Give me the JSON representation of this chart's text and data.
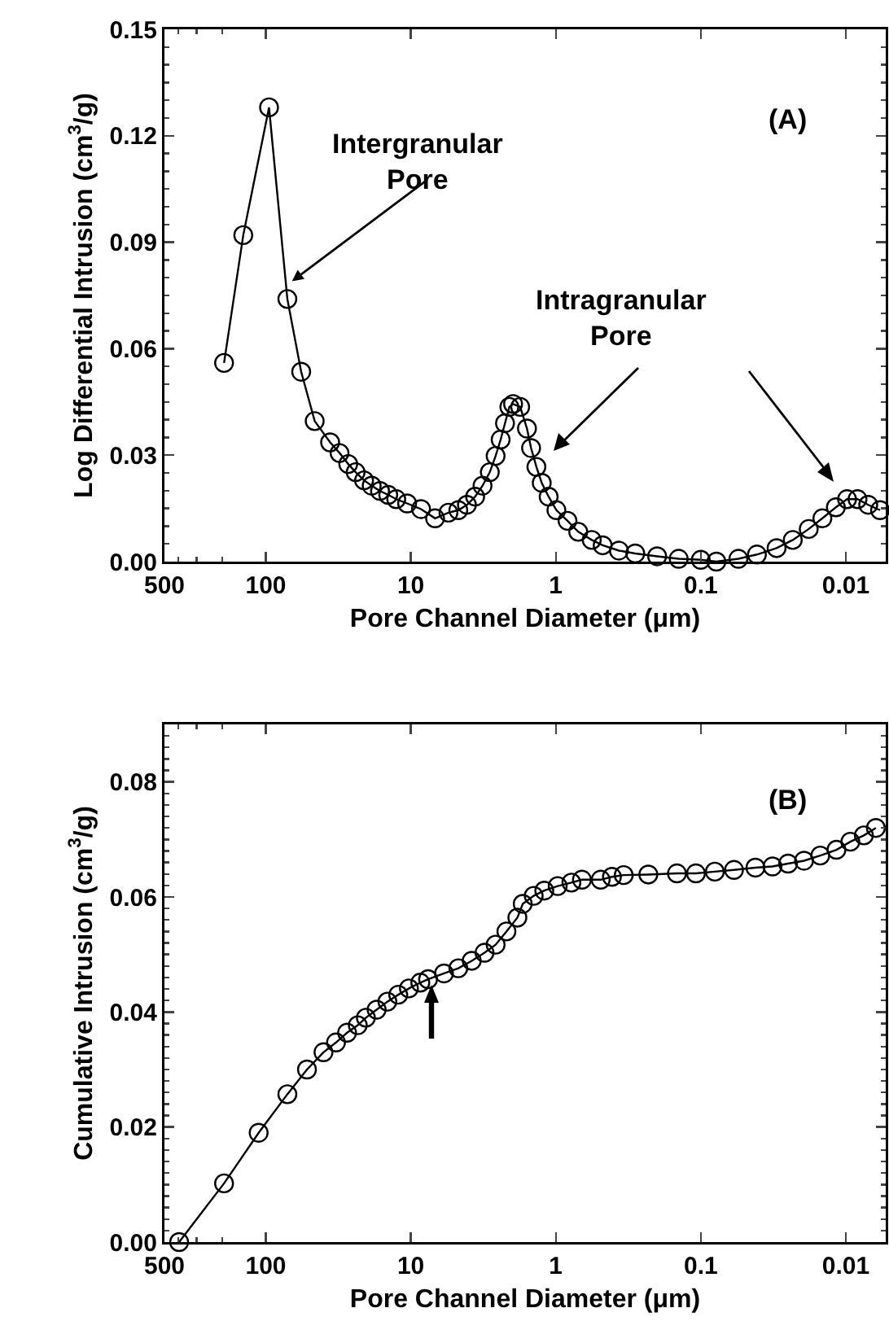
{
  "chart_data": [
    {
      "type": "line",
      "title": "(A)",
      "xlabel": "Pore Channel Diameter (μm)",
      "ylabel": "Log Differential Intrusion (cm$^{3}$/g)",
      "log": "x",
      "marker": "circle",
      "line_style": "solid",
      "xlim": [
        500,
        0.0053
      ],
      "xticks": [
        500,
        100,
        10,
        1,
        0.1,
        0.01
      ],
      "ylim": [
        0,
        0.15
      ],
      "yticks": [
        {
          "value": 0,
          "label": "0.00"
        },
        {
          "value": 0.03,
          "label": "0.03"
        },
        {
          "value": 0.06,
          "label": "0.06"
        },
        {
          "value": 0.09,
          "label": "0.09"
        },
        {
          "value": 0.12,
          "label": "0.12"
        },
        {
          "value": 0.15,
          "label": "0.15"
        }
      ],
      "x": [
        194,
        143,
        95,
        71,
        57,
        46,
        36,
        31,
        27,
        24,
        21,
        18.6,
        16.3,
        14.3,
        12.6,
        10.6,
        8.5,
        6.8,
        5.5,
        4.7,
        4.1,
        3.6,
        3.2,
        2.85,
        2.6,
        2.4,
        2.24,
        2.09,
        1.97,
        1.76,
        1.58,
        1.48,
        1.36,
        1.25,
        1.12,
        0.99,
        0.83,
        0.7,
        0.565,
        0.475,
        0.367,
        0.283,
        0.2,
        0.142,
        0.1,
        0.078,
        0.055,
        0.041,
        0.03,
        0.0232,
        0.018,
        0.0145,
        0.0117,
        0.0098,
        0.0083,
        0.007,
        0.0058
      ],
      "values": [
        0.056,
        0.092,
        0.128,
        0.074,
        0.0535,
        0.0396,
        0.0336,
        0.0306,
        0.0275,
        0.0252,
        0.0229,
        0.0214,
        0.0199,
        0.0188,
        0.0176,
        0.0164,
        0.0148,
        0.0122,
        0.0138,
        0.0145,
        0.016,
        0.0183,
        0.0214,
        0.0252,
        0.0298,
        0.0344,
        0.039,
        0.0436,
        0.0444,
        0.0436,
        0.0375,
        0.032,
        0.0267,
        0.0222,
        0.0183,
        0.0145,
        0.0115,
        0.0084,
        0.0061,
        0.0046,
        0.0031,
        0.0023,
        0.0015,
        0.0008,
        0.0005,
        0,
        0.0008,
        0.002,
        0.0038,
        0.0061,
        0.0092,
        0.0122,
        0.0153,
        0.0176,
        0.0176,
        0.016,
        0.0145
      ],
      "annotations": [
        {
          "text": "Intergranular Pore",
          "x": 66,
          "y": 0.079
        },
        "Intragranular Pore"
      ]
    },
    {
      "type": "line",
      "title": "(B)",
      "xlabel": "Pore Channel Diameter (μm)",
      "ylabel": "Cumulative Intrusion (cm$^{3}$/g)",
      "log": "x",
      "marker": "circle",
      "line_style": "solid",
      "xlim": [
        500,
        0.0053
      ],
      "xticks": [
        500,
        100,
        10,
        1,
        0.1,
        0.01
      ],
      "ylim": [
        0,
        0.09
      ],
      "yticks": [
        {
          "value": 0,
          "label": "0.00"
        },
        {
          "value": 0.02,
          "label": "0.02"
        },
        {
          "value": 0.04,
          "label": "0.04"
        },
        {
          "value": 0.06,
          "label": "0.06"
        },
        {
          "value": 0.08,
          "label": "0.08"
        }
      ],
      "x": [
        396,
        194,
        112,
        71,
        52,
        40,
        32.8,
        27.5,
        23.2,
        20.4,
        17.2,
        14.5,
        12.2,
        10.3,
        8.6,
        7.6,
        5.9,
        4.7,
        3.8,
        3.1,
        2.6,
        2.19,
        1.84,
        1.69,
        1.42,
        1.2,
        0.97,
        0.78,
        0.66,
        0.49,
        0.41,
        0.34,
        0.23,
        0.146,
        0.108,
        0.08,
        0.059,
        0.042,
        0.032,
        0.025,
        0.0194,
        0.015,
        0.0116,
        0.0093,
        0.0075,
        0.0062
      ],
      "values": [
        0,
        0.0102,
        0.019,
        0.0257,
        0.03,
        0.033,
        0.0347,
        0.0364,
        0.0377,
        0.039,
        0.0404,
        0.0418,
        0.043,
        0.0441,
        0.0451,
        0.0457,
        0.0467,
        0.0476,
        0.0489,
        0.0503,
        0.0517,
        0.054,
        0.0564,
        0.0588,
        0.0602,
        0.0611,
        0.0619,
        0.0625,
        0.063,
        0.063,
        0.0635,
        0.0638,
        0.0639,
        0.0641,
        0.0641,
        0.0644,
        0.0647,
        0.0651,
        0.0653,
        0.0658,
        0.0663,
        0.0672,
        0.0682,
        0.0696,
        0.0707,
        0.072
      ]
    }
  ]
}
